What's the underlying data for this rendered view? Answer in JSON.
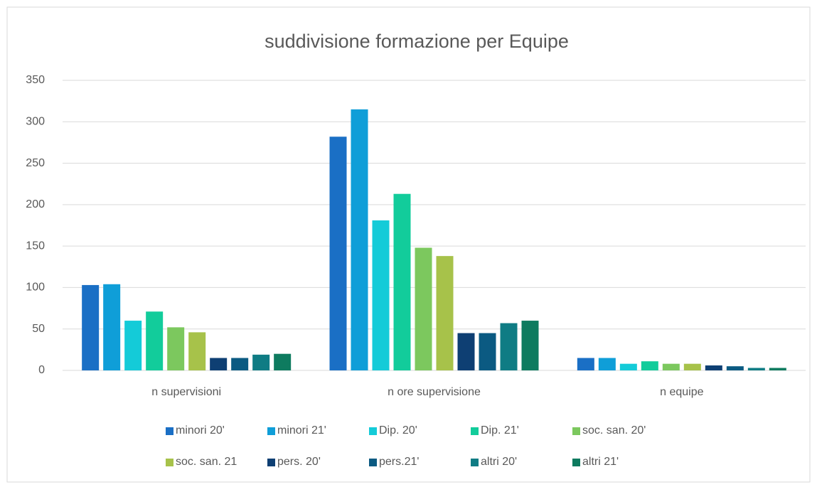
{
  "chart_data": {
    "type": "bar",
    "title": "suddivisione formazione per Equipe",
    "categories": [
      "n supervisioni",
      "n ore supervisione",
      "n equipe"
    ],
    "series": [
      {
        "name": "minori 20'",
        "color": "#1a6fc5",
        "values": [
          103,
          282,
          15
        ]
      },
      {
        "name": "minori 21'",
        "color": "#0f9ed8",
        "values": [
          104,
          315,
          15
        ]
      },
      {
        "name": "Dip. 20'",
        "color": "#14cbd8",
        "values": [
          60,
          181,
          8
        ]
      },
      {
        "name": "Dip. 21'",
        "color": "#12cc9b",
        "values": [
          71,
          213,
          11
        ]
      },
      {
        "name": "soc. san. 20'",
        "color": "#7cc85e",
        "values": [
          52,
          148,
          8
        ]
      },
      {
        "name": "soc. san. 21",
        "color": "#a7c24a",
        "values": [
          46,
          138,
          8
        ]
      },
      {
        "name": "pers. 20'",
        "color": "#0e3f73",
        "values": [
          15,
          45,
          6
        ]
      },
      {
        "name": "pers.21'",
        "color": "#0b5a82",
        "values": [
          15,
          45,
          5
        ]
      },
      {
        "name": "altri 20'",
        "color": "#0f7c84",
        "values": [
          19,
          57,
          3
        ]
      },
      {
        "name": "altri 21'",
        "color": "#0e7b5f",
        "values": [
          20,
          60,
          3
        ]
      }
    ],
    "ylim": [
      0,
      350
    ],
    "yticks": [
      0,
      50,
      100,
      150,
      200,
      250,
      300,
      350
    ],
    "grid": true,
    "legend": "bottom"
  }
}
